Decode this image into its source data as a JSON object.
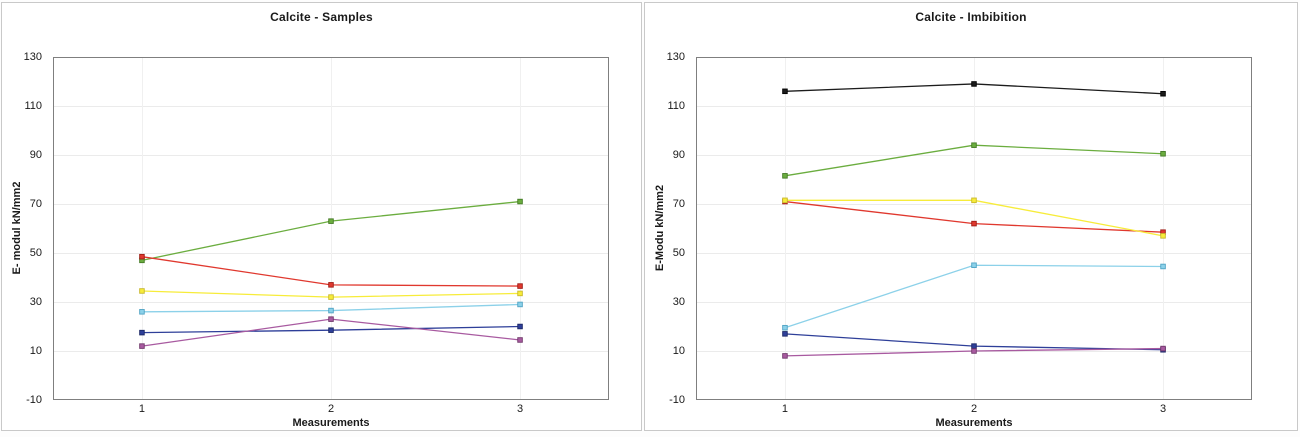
{
  "page": {
    "background": "#fdfdfd"
  },
  "chart_data": [
    {
      "type": "line",
      "title": "Calcite - Samples",
      "xlabel": "Measurements",
      "ylabel": "E- modul kN/mm2",
      "x": [
        1,
        2,
        3
      ],
      "xtick_labels": [
        "1",
        "2",
        "3"
      ],
      "ylim": [
        -10,
        130
      ],
      "yticks": [
        130,
        110,
        90,
        70,
        50,
        30,
        10,
        -10
      ],
      "grid": true,
      "legend": "none",
      "marker": "square",
      "series": [
        {
          "name": "green",
          "color": "#6bad3f",
          "marker_edge": "#437a24",
          "values": [
            47,
            63,
            71
          ]
        },
        {
          "name": "red",
          "color": "#e0382e",
          "marker_edge": "#9e1b14",
          "values": [
            48.5,
            37,
            36.5
          ]
        },
        {
          "name": "yellow",
          "color": "#f7ec3a",
          "marker_edge": "#c8b82a",
          "values": [
            34.5,
            32,
            33.5
          ]
        },
        {
          "name": "light-blue",
          "color": "#8cd1e9",
          "marker_edge": "#4fa3c4",
          "values": [
            26,
            26.5,
            29
          ]
        },
        {
          "name": "dark-blue",
          "color": "#2e3f99",
          "marker_edge": "#1b2766",
          "values": [
            17.5,
            18.5,
            20
          ]
        },
        {
          "name": "purple",
          "color": "#a85aa0",
          "marker_edge": "#70386b",
          "values": [
            12,
            23,
            14.5
          ]
        }
      ]
    },
    {
      "type": "line",
      "title": "Calcite - Imbibition",
      "xlabel": "Measurements",
      "ylabel": "E-Modu kN/mm2",
      "x": [
        1,
        2,
        3
      ],
      "xtick_labels": [
        "1",
        "2",
        "3"
      ],
      "ylim": [
        -10,
        130
      ],
      "yticks": [
        130,
        110,
        90,
        70,
        50,
        30,
        10,
        -10
      ],
      "grid": true,
      "legend": "none",
      "marker": "square",
      "series": [
        {
          "name": "black",
          "color": "#1c1c1c",
          "marker_edge": "#000000",
          "values": [
            116,
            119,
            115
          ]
        },
        {
          "name": "green",
          "color": "#6bad3f",
          "marker_edge": "#437a24",
          "values": [
            81.5,
            94,
            90.5
          ]
        },
        {
          "name": "red",
          "color": "#e0382e",
          "marker_edge": "#9e1b14",
          "values": [
            71,
            62,
            58.5
          ]
        },
        {
          "name": "yellow",
          "color": "#f7ec3a",
          "marker_edge": "#c8b82a",
          "values": [
            71.5,
            71.5,
            57
          ]
        },
        {
          "name": "light-blue",
          "color": "#8cd1e9",
          "marker_edge": "#4fa3c4",
          "values": [
            19.5,
            45,
            44.5
          ]
        },
        {
          "name": "dark-blue",
          "color": "#2e3f99",
          "marker_edge": "#1b2766",
          "values": [
            17,
            12,
            10.5
          ]
        },
        {
          "name": "purple",
          "color": "#a85aa0",
          "marker_edge": "#70386b",
          "values": [
            8,
            10,
            11
          ]
        }
      ]
    }
  ],
  "style": {
    "grid_color": "#ebebeb",
    "vgrid_color": "#f0f0f0",
    "plot_border_color": "#7f7f7f",
    "text_color": "#1a1a1a"
  }
}
